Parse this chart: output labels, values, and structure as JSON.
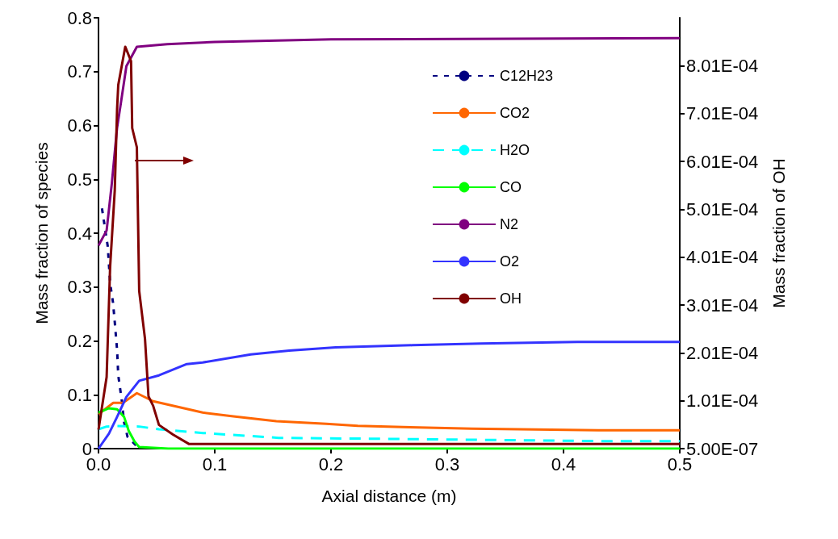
{
  "chart_data": {
    "type": "line",
    "xlabel": "Axial distance (m)",
    "ylabel": "Mass fraction of species",
    "y2label": "Mass fraction of OH",
    "xlim": [
      0,
      0.5
    ],
    "xticks": [
      {
        "value": 0,
        "label": "0.0"
      },
      0.1,
      0.2,
      0.3,
      0.4,
      0.5
    ],
    "ylim": [
      0,
      0.8
    ],
    "yticks": [
      0,
      0.1,
      0.2,
      0.3,
      0.4,
      0.5,
      0.6,
      0.7,
      0.8
    ],
    "y2lim": [
      5e-07,
      0.0009005
    ],
    "y2ticks": [
      {
        "value": 5e-07,
        "label": "5.00E-07"
      },
      {
        "value": 0.0001005,
        "label": "1.01E-04"
      },
      {
        "value": 0.0002005,
        "label": "2.01E-04"
      },
      {
        "value": 0.0003005,
        "label": "3.01E-04"
      },
      {
        "value": 0.0004005,
        "label": "4.01E-04"
      },
      {
        "value": 0.0005005,
        "label": "5.01E-04"
      },
      {
        "value": 0.0006005,
        "label": "6.01E-04"
      },
      {
        "value": 0.0007005,
        "label": "7.01E-04"
      },
      {
        "value": 0.0008005,
        "label": "8.01E-04"
      }
    ],
    "grid": false,
    "legend": "right",
    "marker": "none",
    "series": [
      {
        "name": "C12H23",
        "color": "#000080",
        "line_style": "dotted",
        "x": [
          0.003,
          0.008,
          0.01,
          0.0125,
          0.014,
          0.016,
          0.017,
          0.02,
          0.022,
          0.025,
          0.035
        ],
        "values": [
          0.446,
          0.375,
          0.307,
          0.271,
          0.235,
          0.183,
          0.136,
          0.09,
          0.049,
          0.022,
          0
        ]
      },
      {
        "name": "CO2",
        "color": "#ff6600",
        "line_style": "solid",
        "x": [
          0,
          0.0127,
          0.021,
          0.033,
          0.047,
          0.0896,
          0.116,
          0.153,
          0.196,
          0.223,
          0.262,
          0.321,
          0.43,
          0.5
        ],
        "values": [
          0.064,
          0.085,
          0.085,
          0.103,
          0.088,
          0.067,
          0.06,
          0.051,
          0.046,
          0.0425,
          0.04,
          0.037,
          0.034,
          0.034
        ]
      },
      {
        "name": "H2O",
        "color": "#00ffff",
        "line_style": "dashed",
        "x": [
          0,
          0.007,
          0.016,
          0.035,
          0.052,
          0.09,
          0.155,
          0.3,
          0.43,
          0.5
        ],
        "values": [
          0.036,
          0.041,
          0.042,
          0.041,
          0.036,
          0.029,
          0.02,
          0.017,
          0.014,
          0.014
        ]
      },
      {
        "name": "CO",
        "color": "#00ff00",
        "line_style": "solid",
        "x": [
          0,
          0.009,
          0.016,
          0.022,
          0.026,
          0.031,
          0.035,
          0.06,
          0.5
        ],
        "values": [
          0.067,
          0.075,
          0.073,
          0.059,
          0.033,
          0.013,
          0.003,
          0,
          0
        ]
      },
      {
        "name": "N2",
        "color": "#800080",
        "line_style": "solid",
        "x": [
          0,
          0.007,
          0.0115,
          0.016,
          0.019,
          0.024,
          0.033,
          0.059,
          0.1,
          0.2,
          0.5
        ],
        "values": [
          0.377,
          0.405,
          0.493,
          0.596,
          0.638,
          0.71,
          0.746,
          0.751,
          0.755,
          0.76,
          0.762
        ]
      },
      {
        "name": "O2",
        "color": "#3333ff",
        "line_style": "solid",
        "x": [
          0,
          0.009,
          0.016,
          0.024,
          0.035,
          0.052,
          0.076,
          0.0896,
          0.131,
          0.164,
          0.204,
          0.27,
          0.329,
          0.412,
          0.5
        ],
        "values": [
          0,
          0.028,
          0.059,
          0.096,
          0.126,
          0.136,
          0.157,
          0.16,
          0.175,
          0.182,
          0.188,
          0.192,
          0.195,
          0.198,
          0.198
        ]
      },
      {
        "name": "OH",
        "color": "#800000",
        "line_style": "solid",
        "axis": "y2",
        "x": [
          0,
          0.007,
          0.01,
          0.014,
          0.016,
          0.017,
          0.023,
          0.028,
          0.029,
          0.033,
          0.035,
          0.04,
          0.043,
          0.047,
          0.052,
          0.064,
          0.078,
          0.095,
          0.12,
          0.5
        ],
        "values": [
          4e-05,
          0.00015,
          0.00038,
          0.00054,
          0.00071,
          0.00076,
          0.00084,
          0.00081,
          0.00067,
          0.00063,
          0.00033,
          0.00023,
          0.00011,
          9e-05,
          5e-05,
          3e-05,
          1e-05,
          1e-05,
          1e-05,
          1e-05
        ]
      }
    ]
  }
}
